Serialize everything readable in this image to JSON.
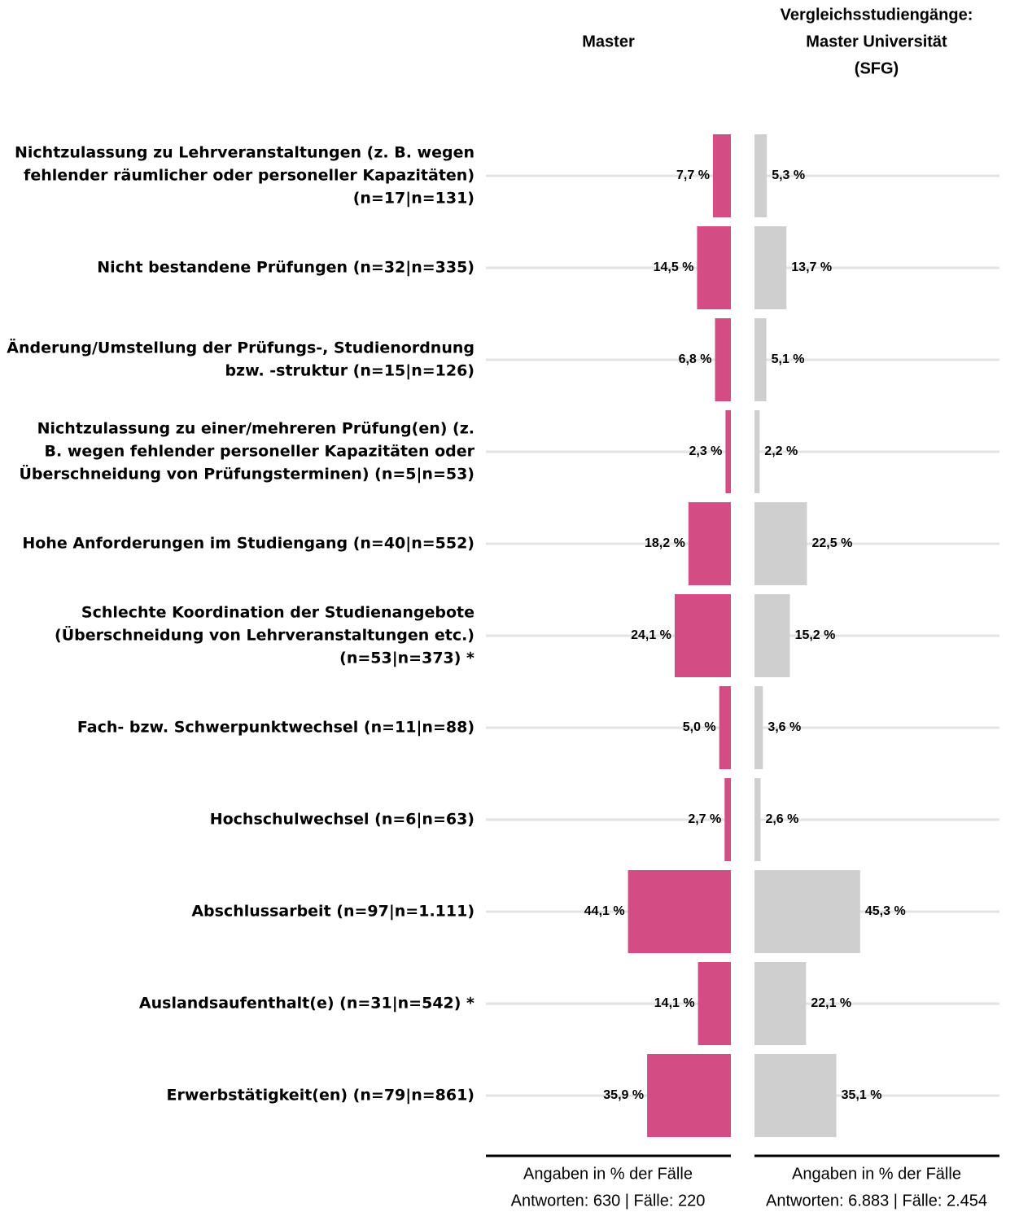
{
  "chart_data": {
    "type": "bar",
    "categories": [
      [
        "Nichtzulassung zu Lehrveranstaltungen (z. B. wegen",
        "fehlender räumlicher oder personeller Kapazitäten)",
        "(n=17|n=131)"
      ],
      [
        "Nicht bestandene Prüfungen (n=32|n=335)"
      ],
      [
        "Änderung/Umstellung der Prüfungs-, Studienordnung",
        "bzw. -struktur (n=15|n=126)"
      ],
      [
        "Nichtzulassung zu einer/mehreren Prüfung(en) (z.",
        "B. wegen fehlender personeller Kapazitäten oder",
        "Überschneidung von Prüfungsterminen) (n=5|n=53)"
      ],
      [
        "Hohe Anforderungen im Studiengang (n=40|n=552)"
      ],
      [
        "Schlechte Koordination der Studienangebote",
        "(Überschneidung von Lehrveranstaltungen etc.)",
        "(n=53|n=373) *"
      ],
      [
        "Fach- bzw. Schwerpunktwechsel (n=11|n=88)"
      ],
      [
        "Hochschulwechsel (n=6|n=63)"
      ],
      [
        "Abschlussarbeit (n=97|n=1.111)"
      ],
      [
        "Auslandsaufenthalt(e) (n=31|n=542) *"
      ],
      [
        "Erwerbstätigkeit(en) (n=79|n=861)"
      ]
    ],
    "xlim": [
      0,
      105
    ],
    "grid": true,
    "series": [
      {
        "name": [
          "Master"
        ],
        "color": "#d44c84",
        "values": [
          7.7,
          14.5,
          6.8,
          2.3,
          18.2,
          24.1,
          5.0,
          2.7,
          44.1,
          14.1,
          35.9
        ],
        "value_labels": [
          "7,7 %",
          "14,5 %",
          "6,8 %",
          "2,3 %",
          "18,2 %",
          "24,1 %",
          "5,0 %",
          "2,7 %",
          "44,1 %",
          "14,1 %",
          "35,9 %"
        ],
        "notes": [
          "Angaben in % der Fälle",
          "Antworten: 630 | Fälle: 220"
        ]
      },
      {
        "name": [
          "Vergleichsstudiengänge:",
          "Master Universität",
          "(SFG)"
        ],
        "color": "#cfcfcf",
        "values": [
          5.3,
          13.7,
          5.1,
          2.2,
          22.5,
          15.2,
          3.6,
          2.6,
          45.3,
          22.1,
          35.1
        ],
        "value_labels": [
          "5,3 %",
          "13,7 %",
          "5,1 %",
          "2,2 %",
          "22,5 %",
          "15,2 %",
          "3,6 %",
          "2,6 %",
          "45,3 %",
          "22,1 %",
          "35,1 %"
        ],
        "notes": [
          "Angaben in % der Fälle",
          "Antworten: 6.883 | Fälle: 2.454"
        ]
      }
    ]
  }
}
